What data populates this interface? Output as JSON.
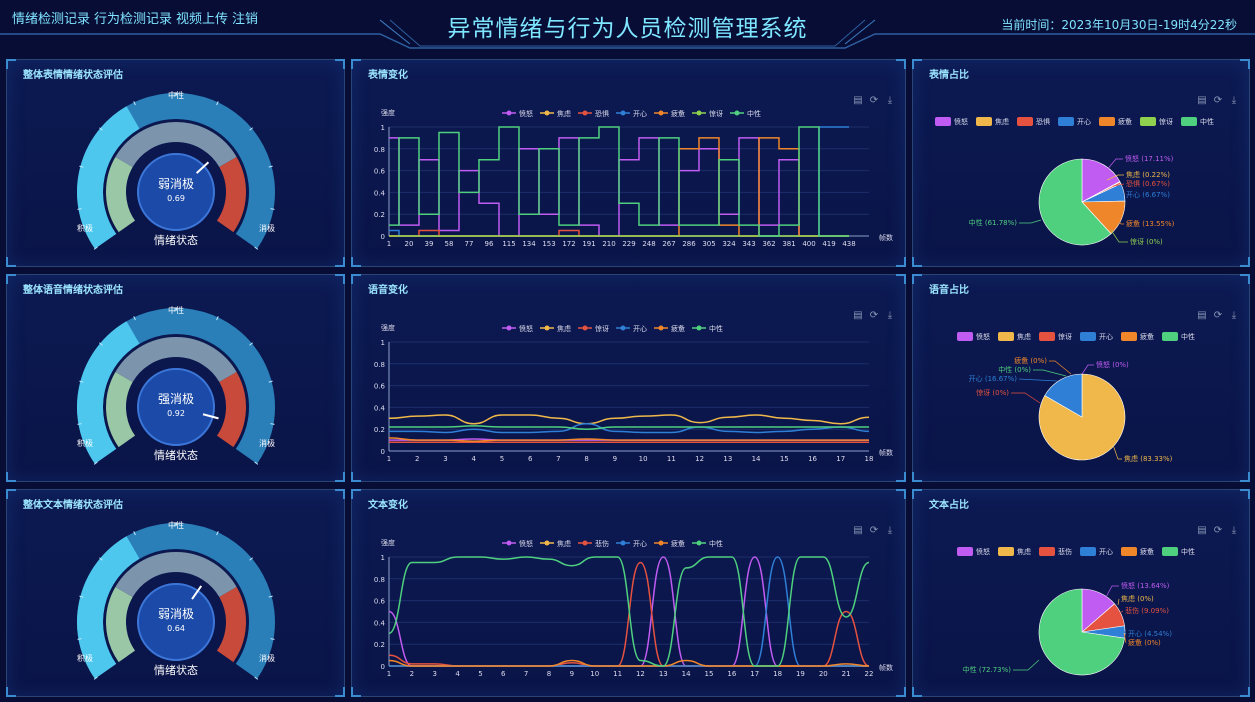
{
  "nav": [
    "情绪检测记录",
    "行为检测记录",
    "视频上传",
    "注销"
  ],
  "title": "异常情绪与行为人员检测管理系统",
  "time": "当前时间：2023年10月30日-19时4分22秒",
  "toolbar_icons": [
    "save-image-icon",
    "refresh-icon",
    "download-icon"
  ],
  "colors": {
    "angry": "#c05cf2",
    "anxious": "#f0b84a",
    "fear": "#e5523f",
    "happy": "#2f7fd6",
    "tired": "#f0862a",
    "surprise": "#8fd14f",
    "neutral": "#4fd07f"
  },
  "rows": [
    {
      "gauge": {
        "title": "整体表情情绪状态评估",
        "top": "中性",
        "left": "积极",
        "right": "消极",
        "state": "弱消极",
        "value": "0.69",
        "value_num": 0.69,
        "bottom": "情绪状态"
      },
      "line": {
        "title": "表情变化",
        "ylabel": "强度",
        "xlabel": "帧数",
        "legend": [
          "愤怒",
          "焦虑",
          "恐惧",
          "开心",
          "疲惫",
          "惊讶",
          "中性"
        ],
        "yticks": [
          "0",
          "0.2",
          "0.4",
          "0.6",
          "0.8",
          "1"
        ],
        "xticks": [
          "1",
          "20",
          "39",
          "58",
          "77",
          "96",
          "115",
          "134",
          "153",
          "172",
          "191",
          "210",
          "229",
          "248",
          "267",
          "286",
          "305",
          "324",
          "343",
          "362",
          "381",
          "400",
          "419",
          "438"
        ]
      },
      "pie": {
        "title": "表情占比",
        "legend": [
          "愤怒",
          "焦虑",
          "恐惧",
          "开心",
          "疲惫",
          "惊讶",
          "中性"
        ],
        "slices": [
          {
            "name": "愤怒",
            "value": 17.11,
            "label": "愤怒 (17.11%)"
          },
          {
            "name": "焦虑",
            "value": 0.22,
            "label": "焦虑 (0.22%)"
          },
          {
            "name": "恐惧",
            "value": 0.67,
            "label": "恐惧 (0.67%)"
          },
          {
            "name": "开心",
            "value": 6.67,
            "label": "开心 (6.67%)"
          },
          {
            "name": "疲惫",
            "value": 13.55,
            "label": "疲惫 (13.55%)"
          },
          {
            "name": "惊讶",
            "value": 0,
            "label": "惊讶 (0%)"
          },
          {
            "name": "中性",
            "value": 61.78,
            "label": "中性 (61.78%)"
          }
        ]
      }
    },
    {
      "gauge": {
        "title": "整体语音情绪状态评估",
        "top": "中性",
        "left": "积极",
        "right": "消极",
        "state": "强消极",
        "value": "0.92",
        "value_num": 0.92,
        "bottom": "情绪状态"
      },
      "line": {
        "title": "语音变化",
        "ylabel": "强度",
        "xlabel": "帧数",
        "legend": [
          "愤怒",
          "焦虑",
          "惊讶",
          "开心",
          "疲惫",
          "中性"
        ],
        "yticks": [
          "0",
          "0.2",
          "0.4",
          "0.6",
          "0.8",
          "1"
        ],
        "xticks": [
          "1",
          "2",
          "3",
          "4",
          "5",
          "6",
          "7",
          "8",
          "9",
          "10",
          "11",
          "12",
          "13",
          "14",
          "15",
          "16",
          "17",
          "18"
        ]
      },
      "pie": {
        "title": "语音占比",
        "legend": [
          "愤怒",
          "焦虑",
          "惊讶",
          "开心",
          "疲惫",
          "中性"
        ],
        "slices": [
          {
            "name": "愤怒",
            "value": 0,
            "label": "愤怒 (0%)"
          },
          {
            "name": "焦虑",
            "value": 83.33,
            "label": "焦虑 (83.33%)"
          },
          {
            "name": "惊讶",
            "value": 0,
            "label": "惊讶 (0%)"
          },
          {
            "name": "开心",
            "value": 16.67,
            "label": "开心 (16.67%)"
          },
          {
            "name": "疲惫",
            "value": 0,
            "label": "疲惫 (0%)"
          },
          {
            "name": "中性",
            "value": 0,
            "label": "中性 (0%)"
          }
        ]
      }
    },
    {
      "gauge": {
        "title": "整体文本情绪状态评估",
        "top": "中性",
        "left": "积极",
        "right": "消极",
        "state": "弱消极",
        "value": "0.64",
        "value_num": 0.64,
        "bottom": "情绪状态"
      },
      "line": {
        "title": "文本变化",
        "ylabel": "强度",
        "xlabel": "帧数",
        "legend": [
          "愤怒",
          "焦虑",
          "悲伤",
          "开心",
          "疲惫",
          "中性"
        ],
        "yticks": [
          "0",
          "0.2",
          "0.4",
          "0.6",
          "0.8",
          "1"
        ],
        "xticks": [
          "1",
          "2",
          "3",
          "4",
          "5",
          "6",
          "7",
          "8",
          "9",
          "10",
          "11",
          "12",
          "13",
          "14",
          "15",
          "16",
          "17",
          "18",
          "19",
          "20",
          "21",
          "22"
        ]
      },
      "pie": {
        "title": "文本占比",
        "legend": [
          "愤怒",
          "焦虑",
          "悲伤",
          "开心",
          "疲惫",
          "中性"
        ],
        "slices": [
          {
            "name": "愤怒",
            "value": 13.64,
            "label": "愤怒 (13.64%)"
          },
          {
            "name": "焦虑",
            "value": 0,
            "label": "焦虑 (0%)"
          },
          {
            "name": "悲伤",
            "value": 9.09,
            "label": "悲伤 (9.09%)"
          },
          {
            "name": "开心",
            "value": 4.54,
            "label": "开心 (4.54%)"
          },
          {
            "name": "疲惫",
            "value": 0,
            "label": "疲惫 (0%)"
          },
          {
            "name": "中性",
            "value": 72.73,
            "label": "中性 (72.73%)"
          }
        ]
      }
    }
  ],
  "chart_data": [
    {
      "type": "line",
      "title": "表情变化",
      "ylabel": "强度",
      "xlabel": "帧数",
      "ylim": [
        0,
        1
      ],
      "x": [
        1,
        20,
        39,
        58,
        77,
        96,
        115,
        134,
        153,
        172,
        191,
        210,
        229,
        248,
        267,
        286,
        305,
        324,
        343,
        362,
        381,
        400,
        419,
        438
      ],
      "series": [
        {
          "name": "愤怒",
          "values": [
            0.9,
            0.1,
            0.7,
            0.05,
            0.6,
            0.3,
            0.0,
            0.8,
            0.2,
            0.9,
            0.1,
            0.0,
            0.7,
            0.9,
            0.1,
            0.6,
            0.8,
            0.2,
            0.9,
            0.1,
            0.7,
            0.0,
            0.0,
            0.0
          ]
        },
        {
          "name": "焦虑",
          "values": [
            0.0,
            0.0,
            0.0,
            0.0,
            0.0,
            0.0,
            0.0,
            0.0,
            0.0,
            0.0,
            0.0,
            0.0,
            0.0,
            0.0,
            0.0,
            0.0,
            0.0,
            0.0,
            0.0,
            0.0,
            0.0,
            0.0,
            0.0,
            0.0
          ]
        },
        {
          "name": "恐惧",
          "values": [
            0.0,
            0.0,
            0.05,
            0.0,
            0.0,
            0.0,
            0.0,
            0.0,
            0.0,
            0.05,
            0.0,
            0.0,
            0.0,
            0.0,
            0.0,
            0.0,
            0.0,
            0.0,
            0.0,
            0.0,
            0.0,
            0.0,
            0.0,
            0.0
          ]
        },
        {
          "name": "开心",
          "values": [
            0.05,
            0.0,
            0.0,
            0.0,
            0.0,
            0.0,
            0.0,
            0.0,
            0.0,
            0.0,
            0.0,
            0.0,
            0.0,
            0.0,
            0.0,
            0.0,
            0.0,
            0.0,
            0.0,
            0.0,
            0.0,
            0.0,
            1.0,
            1.0
          ]
        },
        {
          "name": "疲惫",
          "values": [
            0.0,
            0.0,
            0.0,
            0.0,
            0.0,
            0.0,
            0.0,
            0.0,
            0.0,
            0.0,
            0.0,
            0.0,
            0.0,
            0.0,
            0.0,
            0.8,
            0.9,
            0.1,
            0.0,
            0.9,
            0.8,
            0.0,
            0.0,
            0.0
          ]
        },
        {
          "name": "惊讶",
          "values": [
            0.0,
            0.0,
            0.0,
            0.0,
            0.0,
            0.0,
            0.0,
            0.0,
            0.0,
            0.0,
            0.0,
            0.0,
            0.0,
            0.0,
            0.0,
            0.0,
            0.0,
            0.0,
            0.0,
            0.0,
            0.0,
            0.0,
            0.0,
            0.0
          ]
        },
        {
          "name": "中性",
          "values": [
            0.1,
            0.9,
            0.2,
            0.95,
            0.4,
            0.7,
            1.0,
            0.2,
            0.8,
            0.1,
            0.9,
            1.0,
            0.3,
            0.1,
            0.9,
            0.1,
            0.1,
            0.7,
            0.1,
            0.0,
            0.1,
            1.0,
            0.0,
            0.0
          ]
        }
      ]
    },
    {
      "type": "line",
      "title": "语音变化",
      "ylabel": "强度",
      "xlabel": "帧数",
      "ylim": [
        0,
        1
      ],
      "x": [
        1,
        2,
        3,
        4,
        5,
        6,
        7,
        8,
        9,
        10,
        11,
        12,
        13,
        14,
        15,
        16,
        17,
        18
      ],
      "series": [
        {
          "name": "愤怒",
          "values": [
            0.1,
            0.1,
            0.1,
            0.11,
            0.1,
            0.1,
            0.1,
            0.1,
            0.1,
            0.1,
            0.1,
            0.1,
            0.1,
            0.1,
            0.1,
            0.1,
            0.1,
            0.1
          ]
        },
        {
          "name": "焦虑",
          "values": [
            0.3,
            0.32,
            0.33,
            0.25,
            0.33,
            0.33,
            0.3,
            0.25,
            0.3,
            0.32,
            0.33,
            0.26,
            0.31,
            0.33,
            0.3,
            0.28,
            0.25,
            0.31
          ]
        },
        {
          "name": "惊讶",
          "values": [
            0.08,
            0.08,
            0.08,
            0.08,
            0.08,
            0.08,
            0.08,
            0.08,
            0.08,
            0.08,
            0.08,
            0.08,
            0.08,
            0.08,
            0.08,
            0.08,
            0.08,
            0.08
          ]
        },
        {
          "name": "开心",
          "values": [
            0.18,
            0.18,
            0.17,
            0.2,
            0.17,
            0.17,
            0.18,
            0.25,
            0.18,
            0.17,
            0.17,
            0.22,
            0.18,
            0.17,
            0.18,
            0.2,
            0.22,
            0.18
          ]
        },
        {
          "name": "疲惫",
          "values": [
            0.12,
            0.1,
            0.1,
            0.09,
            0.1,
            0.1,
            0.1,
            0.11,
            0.1,
            0.1,
            0.1,
            0.1,
            0.1,
            0.1,
            0.1,
            0.1,
            0.1,
            0.1
          ]
        },
        {
          "name": "中性",
          "values": [
            0.22,
            0.22,
            0.22,
            0.23,
            0.22,
            0.22,
            0.22,
            0.2,
            0.22,
            0.22,
            0.22,
            0.22,
            0.22,
            0.22,
            0.22,
            0.22,
            0.22,
            0.22
          ]
        }
      ]
    },
    {
      "type": "line",
      "title": "文本变化",
      "ylabel": "强度",
      "xlabel": "帧数",
      "ylim": [
        0,
        1
      ],
      "x": [
        1,
        2,
        3,
        4,
        5,
        6,
        7,
        8,
        9,
        10,
        11,
        12,
        13,
        14,
        15,
        16,
        17,
        18,
        19,
        20,
        21,
        22
      ],
      "series": [
        {
          "name": "愤怒",
          "values": [
            0.5,
            0.0,
            0.0,
            0.0,
            0.0,
            0.0,
            0.0,
            0.0,
            0.0,
            0.0,
            0.0,
            0.0,
            1.0,
            0.0,
            0.0,
            0.0,
            1.0,
            0.0,
            0.0,
            0.0,
            0.0,
            0.0
          ]
        },
        {
          "name": "焦虑",
          "values": [
            0.0,
            0.0,
            0.0,
            0.0,
            0.0,
            0.0,
            0.0,
            0.0,
            0.0,
            0.0,
            0.0,
            0.0,
            0.0,
            0.0,
            0.0,
            0.0,
            0.0,
            0.0,
            0.0,
            0.0,
            0.0,
            0.0
          ]
        },
        {
          "name": "悲伤",
          "values": [
            0.1,
            0.02,
            0.02,
            0.0,
            0.0,
            0.0,
            0.0,
            0.0,
            0.03,
            0.0,
            0.0,
            0.95,
            0.0,
            0.0,
            0.0,
            0.0,
            0.0,
            0.0,
            0.0,
            0.0,
            0.5,
            0.0
          ]
        },
        {
          "name": "开心",
          "values": [
            0.0,
            0.0,
            0.0,
            0.0,
            0.0,
            0.0,
            0.0,
            0.0,
            0.0,
            0.0,
            0.0,
            0.0,
            0.0,
            0.0,
            0.0,
            0.0,
            0.0,
            1.0,
            0.0,
            0.0,
            0.0,
            0.0
          ]
        },
        {
          "name": "疲惫",
          "values": [
            0.05,
            0.0,
            0.0,
            0.0,
            0.0,
            0.0,
            0.0,
            0.0,
            0.05,
            0.0,
            0.0,
            0.0,
            0.0,
            0.05,
            0.0,
            0.0,
            0.0,
            0.0,
            0.0,
            0.0,
            0.02,
            0.0
          ]
        },
        {
          "name": "中性",
          "values": [
            0.3,
            0.95,
            0.95,
            1.0,
            1.0,
            0.98,
            1.0,
            0.98,
            0.92,
            1.0,
            1.0,
            0.05,
            0.0,
            0.9,
            1.0,
            1.0,
            0.0,
            0.0,
            1.0,
            1.0,
            0.45,
            0.95
          ]
        }
      ]
    },
    {
      "type": "pie",
      "title": "表情占比",
      "categories": [
        "愤怒",
        "焦虑",
        "恐惧",
        "开心",
        "疲惫",
        "惊讶",
        "中性"
      ],
      "values": [
        17.11,
        0.22,
        0.67,
        6.67,
        13.55,
        0,
        61.78
      ]
    },
    {
      "type": "pie",
      "title": "语音占比",
      "categories": [
        "愤怒",
        "焦虑",
        "惊讶",
        "开心",
        "疲惫",
        "中性"
      ],
      "values": [
        0,
        83.33,
        0,
        16.67,
        0,
        0
      ]
    },
    {
      "type": "pie",
      "title": "文本占比",
      "categories": [
        "愤怒",
        "焦虑",
        "悲伤",
        "开心",
        "疲惫",
        "中性"
      ],
      "values": [
        13.64,
        0,
        9.09,
        4.54,
        0,
        72.73
      ]
    }
  ]
}
